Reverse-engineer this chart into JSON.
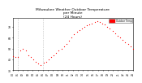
{
  "title": "Milwaukee Weather Outdoor Temperature\nper Minute\n(24 Hours)",
  "title_fontsize": 3.2,
  "background_color": "#ffffff",
  "plot_bg_color": "#ffffff",
  "line_color": "#ff0000",
  "marker_size": 0.8,
  "legend_label": "Outdoor Temp",
  "legend_color": "#ff0000",
  "x_tick_labels": [
    "00",
    "01",
    "02",
    "03",
    "04",
    "05",
    "06",
    "07",
    "08",
    "09",
    "10",
    "11",
    "12",
    "13",
    "14",
    "15",
    "16",
    "17",
    "18",
    "19",
    "20",
    "21",
    "22",
    "23",
    "24"
  ],
  "x_tick_fontsize": 2.2,
  "y_tick_fontsize": 2.2,
  "ylim": [
    30,
    78
  ],
  "y_ticks": [
    30,
    40,
    50,
    60,
    70
  ],
  "vline_positions": [
    1,
    6
  ],
  "vline_color": "#aaaaaa",
  "temperature_data": [
    43,
    42,
    42,
    48,
    50,
    48,
    44,
    42,
    40,
    38,
    36,
    35,
    37,
    38,
    40,
    42,
    44,
    46,
    48,
    50,
    52,
    54,
    57,
    60,
    63,
    65,
    67,
    68,
    70,
    71,
    72,
    73,
    74,
    75,
    74,
    73,
    72,
    70,
    68,
    66,
    64,
    62,
    60,
    58,
    56,
    54,
    52,
    50
  ]
}
